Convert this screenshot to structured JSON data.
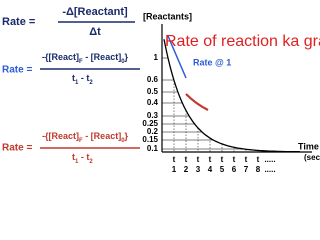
{
  "formula1": {
    "lhs": "Rate =",
    "numerator": "-Δ[Reactant]",
    "denominator": "Δt"
  },
  "formula2": {
    "lhs": "Rate =",
    "numerator": [
      "-{[React]",
      "F",
      " - [React]",
      "0",
      "}"
    ],
    "denominator": [
      "t",
      "1",
      " - t",
      "2"
    ]
  },
  "formula3": {
    "lhs": "Rate =",
    "numerator": [
      "-{[React]",
      "F",
      " - [React]",
      "0",
      "}"
    ],
    "denominator": [
      "t",
      "1",
      " - t",
      "2"
    ]
  },
  "graph": {
    "y_label": "[Reactants]",
    "overlay_title": "Rate of reaction ka graph",
    "tangent_label": "Rate @ 1",
    "y_tick_labels": [
      "1",
      "0.6",
      "0.5",
      "0.4",
      "0.3",
      "0.25",
      "0.2",
      "0.15",
      "0.1"
    ],
    "x_tick_top": [
      "t",
      "t",
      "t",
      "t",
      "t",
      "t",
      "t",
      "t",
      "....."
    ],
    "x_tick_bottom": [
      "1",
      "2",
      "3",
      "4",
      "5",
      "6",
      "7",
      "8",
      "....."
    ],
    "x_label": [
      "Time",
      "(sec"
    ]
  }
}
